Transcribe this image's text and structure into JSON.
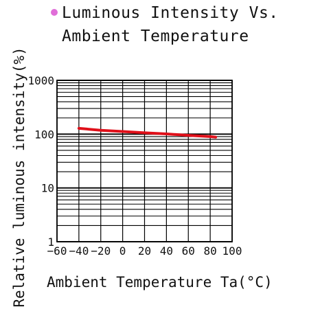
{
  "chart_data": {
    "type": "line",
    "title_lines": [
      "Luminous Intensity Vs.",
      "Ambient Temperature"
    ],
    "xlabel": "Ambient Temperature Ta(°C)",
    "ylabel": "Relative luminous intensity(%)",
    "x_scale": "linear",
    "y_scale": "log",
    "xlim": [
      -60,
      100
    ],
    "ylim": [
      1,
      1000
    ],
    "x_tick_labels": [
      "−60",
      "−40",
      "−20",
      "0",
      "20",
      "40",
      "60",
      "80",
      "100"
    ],
    "y_tick_labels": [
      "1",
      "10",
      "100",
      "1000"
    ],
    "grid": true,
    "series": [
      {
        "color": "#e0101a",
        "x": [
          -40,
          -20,
          0,
          20,
          40,
          60,
          80,
          85
        ],
        "y": [
          128,
          118,
          112,
          106,
          101,
          95,
          90,
          88
        ]
      }
    ]
  },
  "colors": {
    "bullet": "#e06ed8",
    "grid": "#000000",
    "curve": "#e0101a"
  }
}
